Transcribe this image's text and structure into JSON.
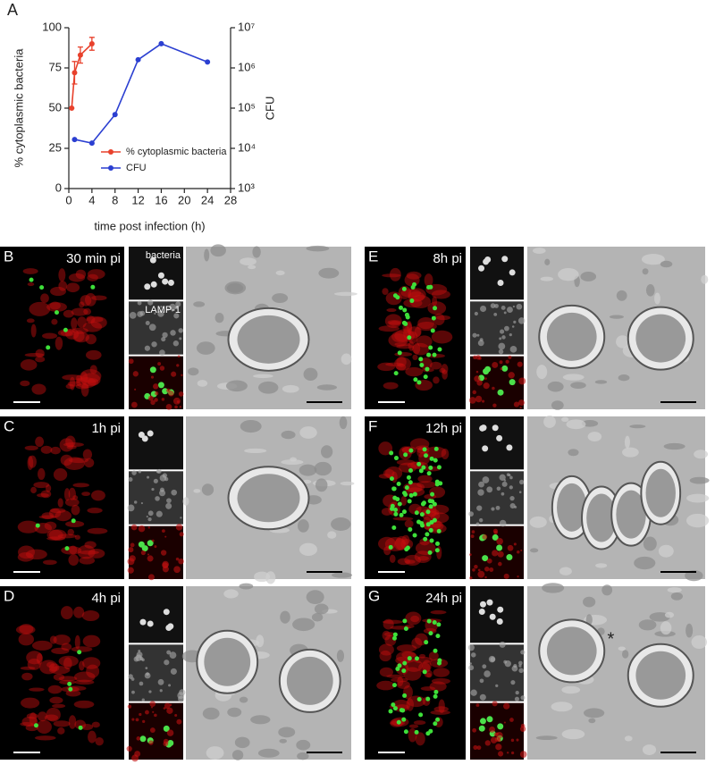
{
  "panel_label": "A",
  "chart_data": {
    "type": "line",
    "xlabel": "time post infection (h)",
    "ylabel": "% cytoplasmic bacteria",
    "y2label": "CFU",
    "xlim": [
      0,
      28
    ],
    "xticks": [
      0,
      4,
      8,
      12,
      16,
      20,
      24,
      28
    ],
    "ylim": [
      0,
      100
    ],
    "yticks": [
      0,
      25,
      50,
      75,
      100
    ],
    "y2lim": [
      1000,
      10000000
    ],
    "y2log": true,
    "y2ticks": [
      {
        "value": 1000,
        "label": "10³"
      },
      {
        "value": 10000,
        "label": "10⁴"
      },
      {
        "value": 100000,
        "label": "10⁵"
      },
      {
        "value": 1000000,
        "label": "10⁶"
      },
      {
        "value": 10000000,
        "label": "10⁷"
      }
    ],
    "legend": "lower right",
    "series": [
      {
        "name": "% cytoplasmic bacteria",
        "color": "#e8412c",
        "x": [
          0.5,
          1,
          2,
          4
        ],
        "values": [
          50,
          72,
          83,
          90
        ],
        "errors": [
          0,
          7,
          5,
          4
        ]
      },
      {
        "name": "CFU",
        "color": "#2b3fd1",
        "axis": "y2",
        "x": [
          1,
          4,
          8,
          12,
          16,
          24
        ],
        "values": [
          16600,
          13500,
          69000,
          1600000,
          4000000,
          1400000
        ]
      }
    ]
  },
  "panels": [
    {
      "letter": "B",
      "time": "30 min pi",
      "inset_top": "bacteria",
      "inset_mid": "LAMP-1"
    },
    {
      "letter": "C",
      "time": "1h pi"
    },
    {
      "letter": "D",
      "time": "4h pi"
    },
    {
      "letter": "E",
      "time": "8h pi"
    },
    {
      "letter": "F",
      "time": "12h pi"
    },
    {
      "letter": "G",
      "time": "24h pi",
      "asterisk": "*"
    }
  ]
}
